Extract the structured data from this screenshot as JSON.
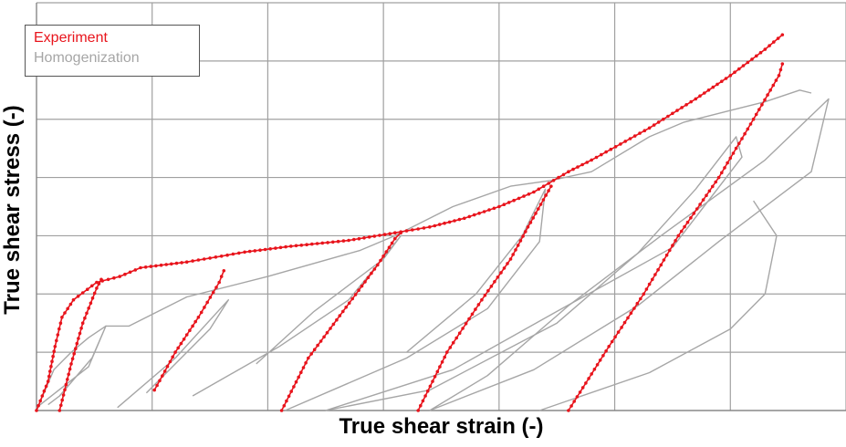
{
  "chart_data": {
    "type": "line",
    "title": "",
    "xlabel": "True shear strain (-)",
    "ylabel": "True shear stress (-)",
    "xlim": [
      0,
      7
    ],
    "ylim": [
      0,
      7
    ],
    "grid": true,
    "legend_position": "top-left",
    "legend": [
      {
        "label": "Experiment",
        "color": "#e8141c"
      },
      {
        "label": "Homogenization",
        "color": "#a6a6a6"
      }
    ],
    "series": [
      {
        "name": "Experiment",
        "color": "#e8141c",
        "markers": true,
        "segments": [
          [
            [
              0,
              0
            ],
            [
              0.1,
              0.5
            ],
            [
              0.16,
              1.1
            ],
            [
              0.22,
              1.6
            ],
            [
              0.32,
              1.9
            ],
            [
              0.52,
              2.2
            ],
            [
              0.72,
              2.3
            ],
            [
              0.9,
              2.45
            ],
            [
              1.3,
              2.55
            ],
            [
              1.6,
              2.65
            ],
            [
              1.8,
              2.72
            ],
            [
              2.2,
              2.82
            ],
            [
              2.7,
              2.92
            ],
            [
              3.1,
              3.05
            ],
            [
              3.4,
              3.15
            ],
            [
              3.7,
              3.3
            ],
            [
              4.0,
              3.5
            ],
            [
              4.3,
              3.75
            ],
            [
              4.6,
              4.1
            ],
            [
              4.8,
              4.3
            ],
            [
              5.3,
              4.85
            ],
            [
              5.7,
              5.35
            ],
            [
              6.0,
              5.75
            ],
            [
              6.3,
              6.2
            ],
            [
              6.45,
              6.45
            ]
          ],
          [
            [
              0.2,
              0
            ],
            [
              0.3,
              0.8
            ],
            [
              0.4,
              1.5
            ],
            [
              0.52,
              2.1
            ],
            [
              0.56,
              2.25
            ]
          ],
          [
            [
              1.02,
              0.35
            ],
            [
              1.2,
              1.0
            ],
            [
              1.4,
              1.6
            ],
            [
              1.58,
              2.2
            ],
            [
              1.62,
              2.4
            ]
          ],
          [
            [
              2.12,
              0
            ],
            [
              2.35,
              0.9
            ],
            [
              2.65,
              1.7
            ],
            [
              2.95,
              2.5
            ],
            [
              3.1,
              2.95
            ],
            [
              3.15,
              3.05
            ]
          ],
          [
            [
              3.3,
              0
            ],
            [
              3.55,
              1.0
            ],
            [
              3.85,
              1.9
            ],
            [
              4.1,
              2.6
            ],
            [
              4.25,
              3.15
            ],
            [
              4.45,
              3.85
            ]
          ],
          [
            [
              4.6,
              0
            ],
            [
              4.95,
              1.1
            ],
            [
              5.25,
              2.0
            ],
            [
              5.55,
              3.0
            ],
            [
              5.9,
              4.0
            ],
            [
              6.2,
              5.0
            ],
            [
              6.42,
              5.75
            ],
            [
              6.45,
              5.95
            ]
          ]
        ]
      },
      {
        "name": "Homogenization",
        "color": "#a6a6a6",
        "markers": false,
        "segments": [
          [
            [
              0,
              0
            ],
            [
              0.15,
              0.7
            ],
            [
              0.3,
              1.0
            ],
            [
              0.45,
              1.25
            ],
            [
              0.6,
              1.45
            ],
            [
              0.8,
              1.45
            ],
            [
              1.3,
              1.95
            ],
            [
              2.0,
              2.3
            ],
            [
              2.8,
              2.75
            ],
            [
              3.1,
              3.0
            ],
            [
              3.6,
              3.5
            ],
            [
              4.1,
              3.85
            ],
            [
              4.45,
              3.95
            ],
            [
              4.8,
              4.1
            ],
            [
              5.3,
              4.7
            ],
            [
              5.6,
              4.95
            ],
            [
              6.0,
              5.15
            ],
            [
              6.3,
              5.3
            ],
            [
              6.6,
              5.5
            ],
            [
              6.7,
              5.45
            ]
          ],
          [
            [
              0,
              0.05
            ],
            [
              0.45,
              0.75
            ],
            [
              0.6,
              1.45
            ],
            [
              0.48,
              0.9
            ],
            [
              0.2,
              0.25
            ],
            [
              0.1,
              0.1
            ]
          ],
          [
            [
              0.7,
              0.05
            ],
            [
              1.2,
              0.9
            ],
            [
              1.66,
              1.9
            ],
            [
              1.5,
              1.4
            ],
            [
              1.2,
              0.8
            ],
            [
              0.95,
              0.3
            ]
          ],
          [
            [
              1.35,
              0.25
            ],
            [
              2.1,
              1.1
            ],
            [
              2.7,
              1.9
            ],
            [
              3.05,
              2.75
            ],
            [
              3.15,
              3.0
            ],
            [
              3.0,
              2.6
            ],
            [
              2.4,
              1.7
            ],
            [
              1.9,
              0.8
            ]
          ],
          [
            [
              2.15,
              0.0
            ],
            [
              3.2,
              0.9
            ],
            [
              3.9,
              1.75
            ],
            [
              4.35,
              2.9
            ],
            [
              4.4,
              3.8
            ],
            [
              4.2,
              3.0
            ],
            [
              3.8,
              2.0
            ],
            [
              3.2,
              1.0
            ]
          ],
          [
            [
              2.5,
              0.0
            ],
            [
              3.6,
              0.7
            ],
            [
              4.5,
              1.7
            ],
            [
              5.5,
              2.8
            ],
            [
              6.1,
              4.35
            ],
            [
              6.05,
              4.7
            ],
            [
              5.7,
              3.8
            ],
            [
              5.2,
              2.7
            ],
            [
              4.5,
              1.5
            ],
            [
              3.4,
              0.35
            ],
            [
              2.5,
              0.0
            ]
          ],
          [
            [
              3.4,
              0.0
            ],
            [
              4.3,
              0.7
            ],
            [
              5.2,
              1.8
            ],
            [
              5.9,
              2.9
            ],
            [
              6.7,
              4.1
            ],
            [
              6.85,
              5.35
            ],
            [
              6.3,
              4.3
            ],
            [
              5.4,
              3.0
            ],
            [
              4.6,
              1.8
            ],
            [
              3.9,
              0.6
            ],
            [
              3.4,
              0.0
            ]
          ],
          [
            [
              4.35,
              0.0
            ],
            [
              5.3,
              0.65
            ],
            [
              6.0,
              1.4
            ],
            [
              6.3,
              2.0
            ],
            [
              6.4,
              3.0
            ],
            [
              6.2,
              3.6
            ]
          ]
        ]
      }
    ]
  }
}
